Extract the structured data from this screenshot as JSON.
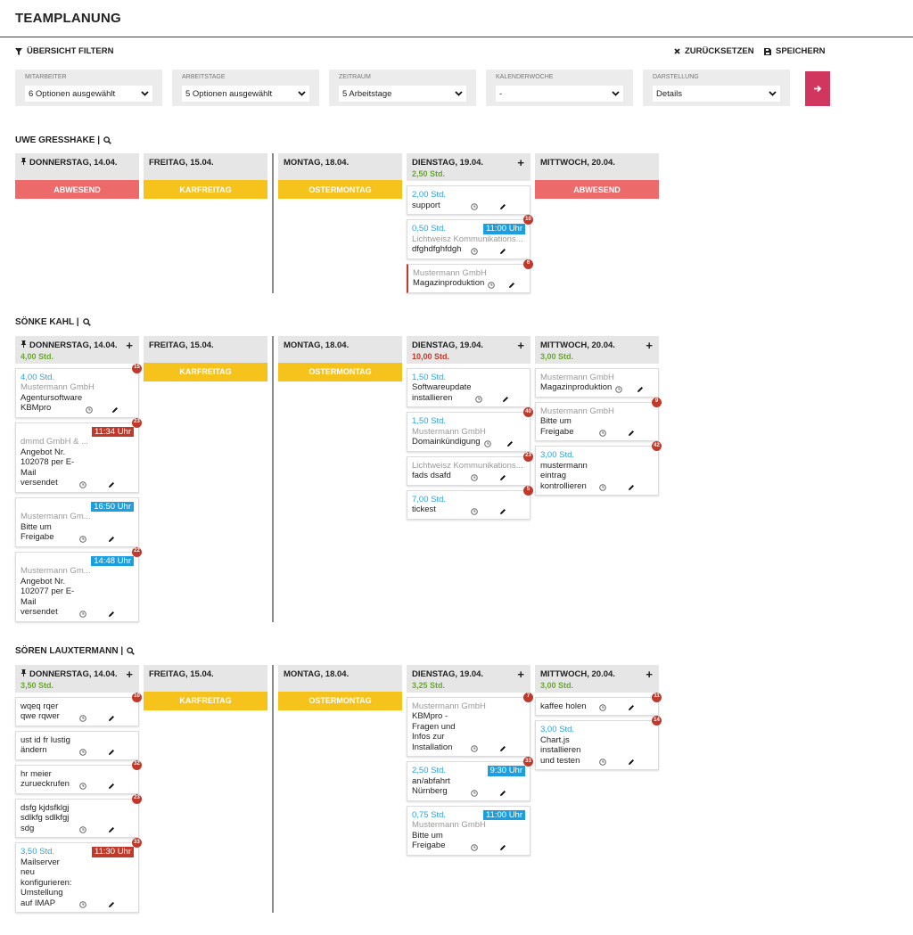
{
  "header": {
    "title": "TEAMPLANUNG"
  },
  "toolbar": {
    "filter": "ÜBERSICHT FILTERN",
    "reset": "ZURÜCKSETZEN",
    "save": "SPEICHERN"
  },
  "filters": [
    {
      "label": "MITARBEITER",
      "value": "6 Optionen ausgewählt"
    },
    {
      "label": "ARBEITSTAGE",
      "value": "5 Optionen ausgewählt"
    },
    {
      "label": "ZEITRAUM",
      "value": "5 Arbeitstage"
    },
    {
      "label": "KALENDERWOCHE",
      "value": "-"
    },
    {
      "label": "DARSTELLUNG",
      "value": "Details"
    }
  ],
  "people": [
    {
      "name": "UWE GRESSHAKE |",
      "days": [
        {
          "label": "DONNERSTAG, 14.04.",
          "pinned": true,
          "status": "ABWESEND",
          "status_color": "#ec6a6a",
          "tasks": []
        },
        {
          "label": "FREITAG, 15.04.",
          "status": "KARFREITAG",
          "status_color": "#f6c21c",
          "tasks": []
        },
        {
          "label": "MONTAG, 18.04.",
          "status": "OSTERMONTAG",
          "status_color": "#f6c21c",
          "tasks": []
        },
        {
          "label": "DIENSTAG, 19.04.",
          "add": true,
          "hours": "2,50 Std.",
          "hours_color": "#6aa830",
          "tasks": [
            {
              "hours": "2,00 Std.",
              "title": "support"
            },
            {
              "badge": 10,
              "hours": "0,50 Std.",
              "time": "11:00 Uhr",
              "time_color": "#1c9fe0",
              "client": "Lichtweisz Kommunikations...",
              "title": "dfghdfghfdgh"
            },
            {
              "badge": 6,
              "client": "Mustermann GmbH",
              "title": "Magazinproduktion",
              "accent": "#c0392b"
            }
          ]
        },
        {
          "label": "MITTWOCH, 20.04.",
          "status": "ABWESEND",
          "status_color": "#ec6a6a",
          "tasks": []
        }
      ]
    },
    {
      "name": "SÖNKE KAHL |",
      "days": [
        {
          "label": "DONNERSTAG, 14.04.",
          "pinned": true,
          "add": true,
          "hours": "4,00 Std.",
          "hours_color": "#6aa830",
          "tasks": [
            {
              "badge": 15,
              "hours": "4,00 Std.",
              "client": "Mustermann GmbH",
              "title": "Agentursoftware KBMpro"
            },
            {
              "badge": 23,
              "client": "dmmd GmbH & ...",
              "time": "11:34 Uhr",
              "time_color": "#c0392b",
              "title": "Angebot Nr. 102078 per E-Mail versendet"
            },
            {
              "client": "Mustermann Gm...",
              "time": "16:50 Uhr",
              "time_color": "#1c9fe0",
              "title": "Bitte um Freigabe"
            },
            {
              "badge": 22,
              "client": "Mustermann Gm...",
              "time": "14:48 Uhr",
              "time_color": "#1c9fe0",
              "title": "Angebot Nr. 102077 per E-Mail versendet"
            }
          ]
        },
        {
          "label": "FREITAG, 15.04.",
          "status": "KARFREITAG",
          "status_color": "#f6c21c",
          "tasks": []
        },
        {
          "label": "MONTAG, 18.04.",
          "status": "OSTERMONTAG",
          "status_color": "#f6c21c",
          "tasks": []
        },
        {
          "label": "DIENSTAG, 19.04.",
          "add": true,
          "hours": "10,00 Std.",
          "hours_color": "#c0392b",
          "tasks": [
            {
              "hours": "1,50 Std.",
              "title": "Softwareupdate installieren"
            },
            {
              "badge": 40,
              "hours": "1,50 Std.",
              "client": "Mustermann GmbH",
              "title": "Domainkündigung"
            },
            {
              "badge": 23,
              "client": "Lichtweisz Kommunikations...",
              "title": "fads dsafd"
            },
            {
              "badge": 5,
              "hours": "7,00 Std.",
              "title": "tickest"
            }
          ]
        },
        {
          "label": "MITTWOCH, 20.04.",
          "add": true,
          "hours": "3,00 Std.",
          "hours_color": "#6aa830",
          "tasks": [
            {
              "client": "Mustermann GmbH",
              "title": "Magazinproduktion"
            },
            {
              "badge": 9,
              "client": "Mustermann GmbH",
              "title": "Bitte um Freigabe"
            },
            {
              "badge": 42,
              "hours": "3,00 Std.",
              "title": "mustermann eintrag kontrollieren"
            }
          ]
        }
      ]
    },
    {
      "name": "SÖREN LAUXTERMANN |",
      "days": [
        {
          "label": "DONNERSTAG, 14.04.",
          "pinned": true,
          "add": true,
          "hours": "3,50 Std.",
          "hours_color": "#6aa830",
          "tasks": [
            {
              "badge": 10,
              "title": "wqeq rqer qwe rqwer"
            },
            {
              "title": "ust id fr lustig ändern"
            },
            {
              "badge": 32,
              "title": "hr meier zurueckrufen"
            },
            {
              "badge": 23,
              "title": "dsfg kjdsfklgj sdlkfg sdlkfgj sdg"
            },
            {
              "badge": 33,
              "hours": "3,50 Std.",
              "time": "11:30 Uhr",
              "time_color": "#c0392b",
              "title": "Mailserver neu konfigurieren: Umstellung auf IMAP"
            }
          ]
        },
        {
          "label": "FREITAG, 15.04.",
          "status": "KARFREITAG",
          "status_color": "#f6c21c",
          "tasks": []
        },
        {
          "label": "MONTAG, 18.04.",
          "status": "OSTERMONTAG",
          "status_color": "#f6c21c",
          "tasks": []
        },
        {
          "label": "DIENSTAG, 19.04.",
          "add": true,
          "hours": "3,25 Std.",
          "hours_color": "#6aa830",
          "tasks": [
            {
              "badge": 7,
              "client": "Mustermann GmbH",
              "title": "KBMpro - Fragen und Infos zur Installation"
            },
            {
              "badge": 33,
              "hours": "2,50 Std.",
              "time": "9:30 Uhr",
              "time_color": "#1c9fe0",
              "title": "an/abfahrt Nürnberg"
            },
            {
              "hours": "0,75 Std.",
              "time": "11:00 Uhr",
              "time_color": "#1c9fe0",
              "client": "Mustermann GmbH",
              "title": "Bitte um Freigabe"
            }
          ]
        },
        {
          "label": "MITTWOCH, 20.04.",
          "add": true,
          "hours": "3,00 Std.",
          "hours_color": "#6aa830",
          "tasks": [
            {
              "badge": 11,
              "title": "kaffee holen"
            },
            {
              "badge": 14,
              "hours": "3,00 Std.",
              "title": "Chart.js installieren und testen"
            }
          ]
        }
      ]
    }
  ]
}
